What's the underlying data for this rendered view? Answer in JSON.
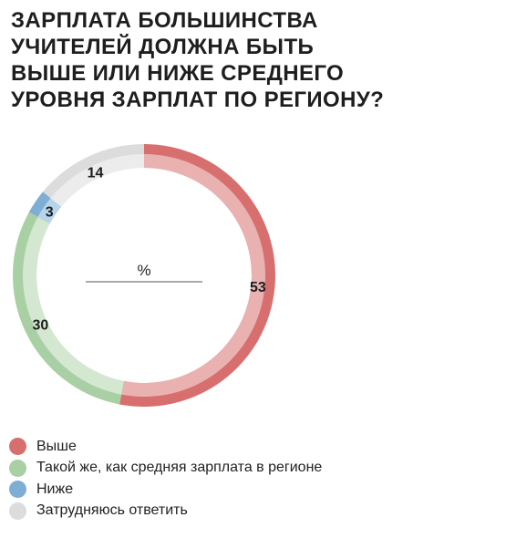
{
  "chart_data": {
    "type": "pie",
    "style": "donut",
    "title_lines": [
      "ЗАРПЛАТА БОЛЬШИНСТВА",
      "УЧИТЕЛЕЙ ДОЛЖНА БЫТЬ",
      "ВЫШЕ ИЛИ НИЖЕ СРЕДНЕГО",
      "УРОВНЯ ЗАРПЛАТ ПО РЕГИОНУ?"
    ],
    "unit": "%",
    "start": "top, clockwise",
    "series": [
      {
        "key": "higher",
        "name": "Выше",
        "value": 53,
        "color": "#d86f6f",
        "light": "#e9b2b1"
      },
      {
        "key": "same",
        "name": "Такой же, как средняя зарплата в регионе",
        "value": 30,
        "color": "#a9cfa5",
        "light": "#d4e7d0"
      },
      {
        "key": "lower",
        "name": "Ниже",
        "value": 3,
        "color": "#7eaed3",
        "light": "#b8d4ea"
      },
      {
        "key": "unsure",
        "name": "Затрудняюсь ответить",
        "value": 14,
        "color": "#dcdcdc",
        "light": "#ececec"
      }
    ]
  }
}
